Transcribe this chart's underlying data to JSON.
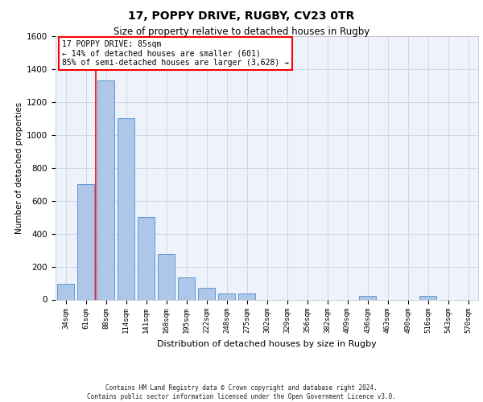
{
  "title_line1": "17, POPPY DRIVE, RUGBY, CV23 0TR",
  "title_line2": "Size of property relative to detached houses in Rugby",
  "xlabel": "Distribution of detached houses by size in Rugby",
  "ylabel": "Number of detached properties",
  "categories": [
    "34sqm",
    "61sqm",
    "88sqm",
    "114sqm",
    "141sqm",
    "168sqm",
    "195sqm",
    "222sqm",
    "248sqm",
    "275sqm",
    "302sqm",
    "329sqm",
    "356sqm",
    "382sqm",
    "409sqm",
    "436sqm",
    "463sqm",
    "490sqm",
    "516sqm",
    "543sqm",
    "570sqm"
  ],
  "values": [
    95,
    700,
    1330,
    1100,
    500,
    275,
    135,
    72,
    35,
    35,
    0,
    0,
    0,
    0,
    0,
    20,
    0,
    0,
    20,
    0,
    0
  ],
  "bar_color": "#aec6e8",
  "bar_edge_color": "#5b9bd5",
  "grid_color": "#d0d8e8",
  "background_color": "#eef2fb",
  "annotation_box_text": "17 POPPY DRIVE: 85sqm\n← 14% of detached houses are smaller (601)\n85% of semi-detached houses are larger (3,628) →",
  "red_line_x": 1.5,
  "ylim": [
    0,
    1600
  ],
  "yticks": [
    0,
    200,
    400,
    600,
    800,
    1000,
    1200,
    1400,
    1600
  ],
  "footer_line1": "Contains HM Land Registry data © Crown copyright and database right 2024.",
  "footer_line2": "Contains public sector information licensed under the Open Government Licence v3.0."
}
